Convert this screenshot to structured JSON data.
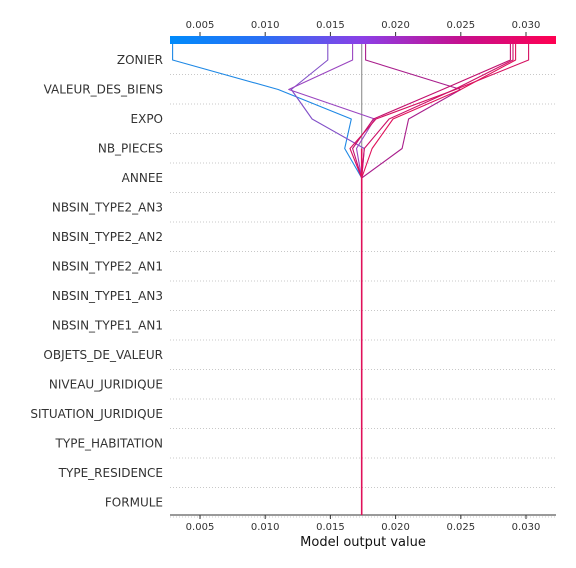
{
  "chart_data": {
    "type": "line",
    "subtype": "shap-decision-plot",
    "xlabel": "Model output value",
    "xlim": [
      0.0027,
      0.0323
    ],
    "x_ticks": [
      0.005,
      0.01,
      0.015,
      0.02,
      0.025,
      0.03
    ],
    "x_tick_labels": [
      "0.005",
      "0.010",
      "0.015",
      "0.020",
      "0.025",
      "0.030"
    ],
    "features": [
      "ZONIER",
      "VALEUR_DES_BIENS",
      "EXPO",
      "NB_PIECES",
      "ANNEE",
      "NBSIN_TYPE2_AN3",
      "NBSIN_TYPE2_AN2",
      "NBSIN_TYPE2_AN1",
      "NBSIN_TYPE1_AN3",
      "NBSIN_TYPE1_AN1",
      "OBJETS_DE_VALEUR",
      "NIVEAU_JURIDIQUE",
      "SITUATION_JURIDIQUE",
      "TYPE_HABITATION",
      "TYPE_RESIDENCE",
      "FORMULE"
    ],
    "base_value": 0.0174,
    "grid": "dotted horizontal at each feature row",
    "colorbar": {
      "position": "top",
      "stops": [
        "#008bfb",
        "#8c3fe6",
        "#c4108f",
        "#ff0051"
      ]
    },
    "series": [
      {
        "color": "#1e88e5",
        "values": [
          0.0029,
          0.011,
          0.0166,
          0.0161,
          0.0174
        ]
      },
      {
        "color": "#8250c8",
        "values": [
          0.0148,
          0.012,
          0.0136,
          0.0176,
          0.0174
        ]
      },
      {
        "color": "#9a45c0",
        "values": [
          0.0167,
          0.0118,
          0.0184,
          0.017,
          0.0174
        ]
      },
      {
        "color": "#a91e8c",
        "values": [
          0.0177,
          0.025,
          0.021,
          0.0205,
          0.0174
        ]
      },
      {
        "color": "#c2106e",
        "values": [
          0.0288,
          0.0236,
          0.0183,
          0.0167,
          0.0174
        ]
      },
      {
        "color": "#d51060",
        "values": [
          0.0302,
          0.0246,
          0.0185,
          0.0165,
          0.0174
        ]
      },
      {
        "color": "#e0115a",
        "values": [
          0.0292,
          0.025,
          0.0198,
          0.0182,
          0.0174
        ]
      },
      {
        "color": "#cc1068",
        "values": [
          0.029,
          0.0245,
          0.0195,
          0.0176,
          0.0174
        ]
      }
    ]
  }
}
